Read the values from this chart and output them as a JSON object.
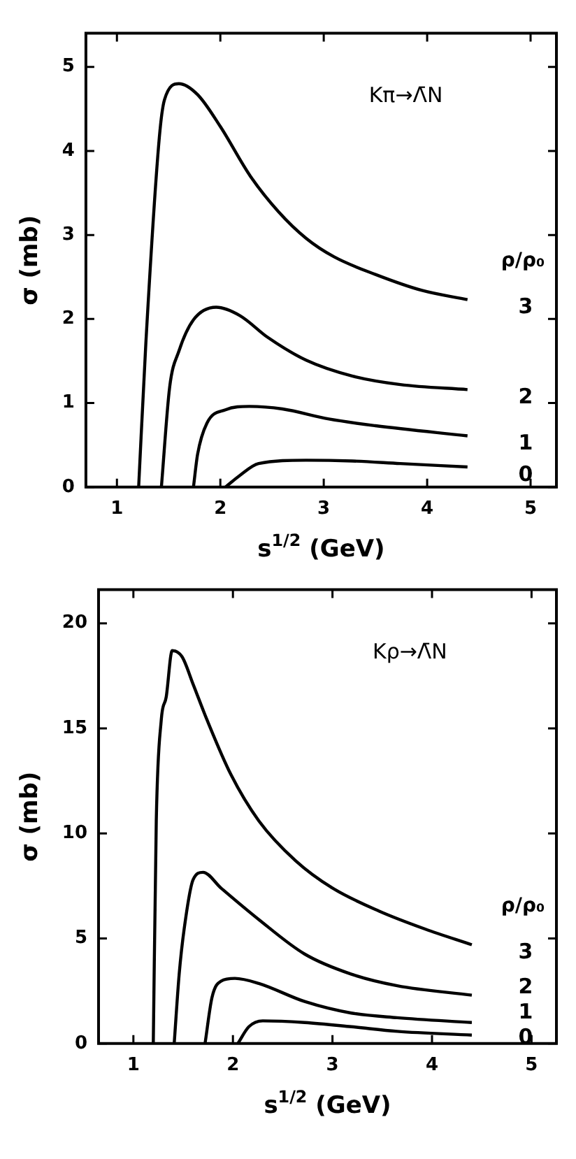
{
  "chart_data": [
    {
      "type": "line",
      "annotations": [
        "Kπ→Λ̄N"
      ],
      "xlabel": "s$^{1/2}$ (GeV)",
      "ylabel": "σ (mb)",
      "legend_title": "ρ/ρ₀",
      "xlim": [
        0.7,
        5.25
      ],
      "ylim": [
        0,
        5.4
      ],
      "xticks": [
        1,
        2,
        3,
        4,
        5
      ],
      "yticks": [
        0,
        1,
        2,
        3,
        4,
        5
      ],
      "grid": false,
      "legend": "right",
      "marker": "none",
      "line_style": "solid",
      "series": [
        {
          "name": "3",
          "color": "#000000",
          "x": [
            1.21,
            1.28,
            1.41,
            1.46,
            1.6,
            1.78,
            2.0,
            2.29,
            2.56,
            2.83,
            3.1,
            3.5,
            3.95,
            4.39
          ],
          "values": [
            0,
            1.72,
            4.16,
            4.61,
            4.8,
            4.67,
            4.29,
            3.7,
            3.28,
            2.96,
            2.74,
            2.53,
            2.34,
            2.23
          ]
        },
        {
          "name": "2",
          "color": "#000000",
          "x": [
            1.43,
            1.51,
            1.6,
            1.74,
            1.96,
            2.19,
            2.46,
            2.83,
            3.28,
            3.74,
            4.39
          ],
          "values": [
            0,
            1.19,
            1.62,
            1.99,
            2.14,
            2.04,
            1.78,
            1.51,
            1.32,
            1.22,
            1.16
          ]
        },
        {
          "name": "1",
          "color": "#000000",
          "x": [
            1.74,
            1.78,
            1.87,
            2.05,
            2.28,
            2.6,
            3.05,
            3.5,
            4.39
          ],
          "values": [
            0,
            0.39,
            0.76,
            0.92,
            0.96,
            0.93,
            0.81,
            0.73,
            0.61
          ]
        },
        {
          "name": "0",
          "color": "#000000",
          "x": [
            2.05,
            2.19,
            2.37,
            2.83,
            3.28,
            3.74,
            4.39
          ],
          "values": [
            0,
            0.14,
            0.28,
            0.32,
            0.31,
            0.28,
            0.24
          ]
        }
      ]
    },
    {
      "type": "line",
      "annotations": [
        "Kρ→Λ̄N"
      ],
      "xlabel": "s$^{1/2}$ (GeV)",
      "ylabel": "σ (mb)",
      "legend_title": "ρ/ρ₀",
      "xlim": [
        0.65,
        5.25
      ],
      "ylim": [
        0,
        21.6
      ],
      "xticks": [
        1,
        2,
        3,
        4,
        5
      ],
      "yticks": [
        0,
        5,
        10,
        15,
        20
      ],
      "grid": false,
      "legend": "right",
      "marker": "none",
      "line_style": "solid",
      "series": [
        {
          "name": "3",
          "color": "#000000",
          "x": [
            1.2,
            1.23,
            1.28,
            1.33,
            1.39,
            1.49,
            1.6,
            1.74,
            1.98,
            2.26,
            2.63,
            3.0,
            3.47,
            3.93,
            4.4
          ],
          "values": [
            0,
            10.6,
            15.4,
            16.5,
            18.7,
            18.4,
            17.1,
            15.4,
            12.8,
            10.6,
            8.7,
            7.4,
            6.3,
            5.45,
            4.7
          ]
        },
        {
          "name": "2",
          "color": "#000000",
          "x": [
            1.41,
            1.46,
            1.51,
            1.6,
            1.7,
            1.88,
            2.26,
            2.72,
            3.19,
            3.65,
            4.4
          ],
          "values": [
            0,
            3.3,
            5.45,
            7.8,
            8.15,
            7.4,
            5.9,
            4.26,
            3.3,
            2.75,
            2.3
          ]
        },
        {
          "name": "1",
          "color": "#000000",
          "x": [
            1.72,
            1.79,
            1.88,
            2.02,
            2.26,
            2.72,
            3.19,
            3.65,
            4.4
          ],
          "values": [
            0,
            2.2,
            2.97,
            3.1,
            2.86,
            2.0,
            1.45,
            1.23,
            1.0
          ]
        },
        {
          "name": "0",
          "color": "#000000",
          "x": [
            2.05,
            2.16,
            2.3,
            2.72,
            3.19,
            3.65,
            4.4
          ],
          "values": [
            0,
            0.8,
            1.08,
            1.0,
            0.8,
            0.58,
            0.4
          ]
        }
      ]
    }
  ]
}
